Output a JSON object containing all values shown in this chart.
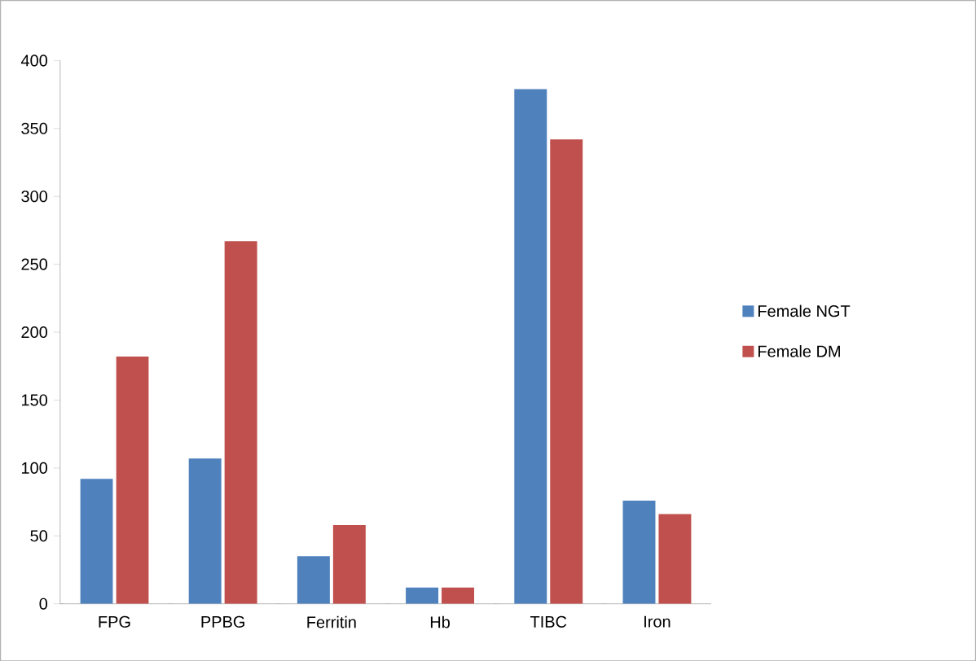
{
  "chart_data": {
    "type": "bar",
    "categories": [
      "FPG",
      "PPBG",
      "Ferritin",
      "Hb",
      "TIBC",
      "Iron"
    ],
    "series": [
      {
        "name": "Female NGT",
        "color": "#4f81bd",
        "values": [
          92,
          107,
          35,
          12,
          379,
          76
        ]
      },
      {
        "name": "Female DM",
        "color": "#c0504d",
        "values": [
          182,
          267,
          58,
          12,
          342,
          66
        ]
      }
    ],
    "ylim": [
      0,
      400
    ],
    "yticks": [
      0,
      50,
      100,
      150,
      200,
      250,
      300,
      350,
      400
    ],
    "legend": "right",
    "grid": false
  }
}
